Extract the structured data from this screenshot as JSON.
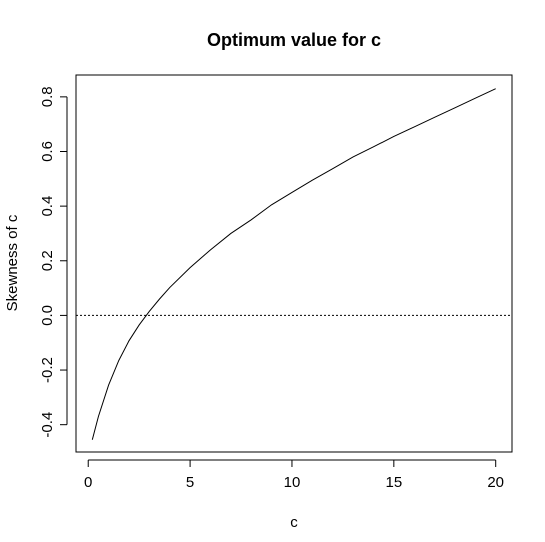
{
  "chart_data": {
    "type": "line",
    "title": "Optimum value for c",
    "xlabel": "c",
    "ylabel": "Skewness of c",
    "xlim": [
      -0.6,
      20.8
    ],
    "ylim": [
      -0.5,
      0.88
    ],
    "xticks": [
      0,
      5,
      10,
      15,
      20
    ],
    "xtick_labels": [
      "0",
      "5",
      "10",
      "15",
      "20"
    ],
    "yticks": [
      -0.4,
      -0.2,
      0.0,
      0.2,
      0.4,
      0.6,
      0.8
    ],
    "ytick_labels": [
      "-0.4",
      "-0.2",
      "0.0",
      "0.2",
      "0.4",
      "0.6",
      "0.8"
    ],
    "reference_line": {
      "y": 0.0,
      "style": "dotted"
    },
    "grid": false,
    "series": [
      {
        "x": [
          0.2,
          0.5,
          1.0,
          1.5,
          2.0,
          2.5,
          3.0,
          3.5,
          4.0,
          5.0,
          6.0,
          7.0,
          8.0,
          9.0,
          10.0,
          11.0,
          12.0,
          13.0,
          14.0,
          15.0,
          16.0,
          17.0,
          18.0,
          19.0,
          20.0
        ],
        "y": [
          -0.455,
          -0.37,
          -0.255,
          -0.165,
          -0.093,
          -0.035,
          0.015,
          0.06,
          0.102,
          0.175,
          0.24,
          0.3,
          0.35,
          0.405,
          0.45,
          0.495,
          0.537,
          0.58,
          0.617,
          0.655,
          0.69,
          0.725,
          0.76,
          0.795,
          0.83
        ]
      }
    ]
  }
}
